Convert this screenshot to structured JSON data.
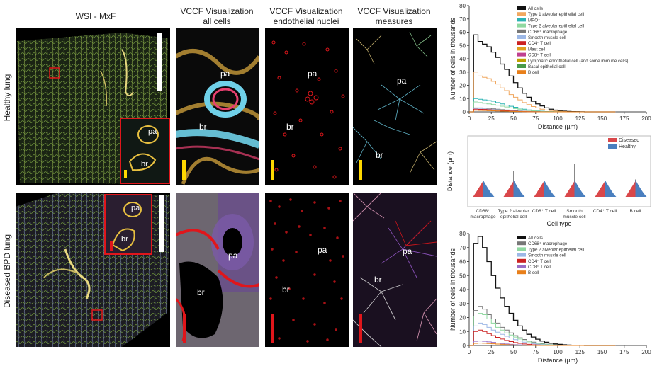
{
  "columns": {
    "c1": "WSI - MxF",
    "c2a": "VCCF Visualization",
    "c2b": "all cells",
    "c3a": "VCCF Visualization",
    "c3b": "endothelial nuclei",
    "c4a": "VCCF Visualization",
    "c4b": "measures"
  },
  "rows": {
    "healthy": "Healthy lung",
    "diseased": "Diseased BPD lung"
  },
  "annotations": {
    "pa": "pa",
    "br": "br"
  },
  "colors": {
    "healthy_scale": "#ffd800",
    "diseased_scale": "#e0161b",
    "scale_white": "#ffffff"
  },
  "chart_data": [
    {
      "type": "line",
      "ylabel": "Number of cells in thousands",
      "xlabel": "Distance (µm)",
      "xlim": [
        0,
        200
      ],
      "ylim": [
        0,
        80
      ],
      "xticks": [
        0,
        25,
        50,
        75,
        100,
        125,
        150,
        175,
        200
      ],
      "yticks": [
        0,
        10,
        20,
        30,
        40,
        50,
        60,
        70,
        80
      ],
      "bin": 5,
      "x": [
        0,
        5,
        10,
        15,
        20,
        25,
        30,
        35,
        40,
        45,
        50,
        55,
        60,
        65,
        70,
        75,
        80,
        85,
        90,
        95,
        100,
        105,
        110,
        115,
        120,
        125,
        130,
        135,
        140,
        145,
        150,
        155,
        160
      ],
      "legend": [
        "All cells",
        "Type 1 alveolar epithelial cell",
        "MPO⁺",
        "Type 2 alveolar epithelial cell",
        "CD68⁺ macrophage",
        "Smooth muscle cell",
        "CD4⁺ T cell",
        "Mast cell",
        "CD8⁺ T cell",
        "Lymphatic endothelial cell (and some immune cells)",
        "Basal epithelial cell",
        "B cell"
      ],
      "series": [
        {
          "name": "All cells",
          "color": "#111111",
          "values": [
            0,
            58,
            53,
            51,
            49,
            45,
            41,
            36,
            32,
            27,
            22,
            18,
            14,
            11,
            8,
            6,
            4.5,
            3,
            2,
            1.3,
            0.8,
            0.5,
            0.3,
            0.2,
            0.1,
            0.05,
            0,
            0,
            0,
            0,
            0,
            0,
            0
          ]
        },
        {
          "name": "Type 1 alveolar epithelial cell",
          "color": "#f0a860",
          "values": [
            0,
            30,
            27,
            26,
            25,
            23,
            21,
            18,
            16,
            13,
            11,
            9,
            7,
            5.5,
            4,
            3,
            2,
            1.4,
            1,
            0.6,
            0.4,
            0.2,
            0.1,
            0.05,
            0,
            0,
            0,
            0,
            0,
            0,
            0,
            0,
            0
          ]
        },
        {
          "name": "MPO⁺",
          "color": "#2ab3b3",
          "values": [
            0,
            10,
            9.5,
            9,
            8.5,
            8,
            7,
            6,
            5,
            4.2,
            3.5,
            2.8,
            2,
            1.5,
            1,
            0.7,
            0.5,
            0.3,
            0.2,
            0.1,
            0.05,
            0,
            0,
            0,
            0,
            0,
            0,
            0,
            0,
            0,
            0,
            0,
            0
          ]
        },
        {
          "name": "Type 2 alveolar epithelial cell",
          "color": "#8fd8a0",
          "values": [
            0,
            7.5,
            7,
            6.5,
            6,
            5.5,
            5,
            4.3,
            3.7,
            3,
            2.5,
            2,
            1.5,
            1.1,
            0.8,
            0.5,
            0.3,
            0.2,
            0.1,
            0.05,
            0,
            0,
            0,
            0,
            0,
            0,
            0,
            0,
            0,
            0,
            0,
            0,
            0
          ]
        },
        {
          "name": "CD68⁺ macrophage",
          "color": "#777777",
          "values": [
            0,
            3,
            3,
            2.8,
            2.6,
            2.3,
            2,
            1.7,
            1.4,
            1.1,
            0.9,
            0.7,
            0.5,
            0.35,
            0.25,
            0.15,
            0.1,
            0.05,
            0,
            0,
            0,
            0,
            0,
            0,
            0,
            0,
            0,
            0,
            0,
            0,
            0,
            0,
            0
          ]
        },
        {
          "name": "Smooth muscle cell",
          "color": "#9db8e6",
          "values": [
            0,
            2.5,
            2.3,
            2.1,
            1.9,
            1.7,
            1.5,
            1.2,
            1,
            0.8,
            0.6,
            0.45,
            0.3,
            0.2,
            0.12,
            0.08,
            0.05,
            0,
            0,
            0,
            0,
            0,
            0,
            0,
            0,
            0,
            0,
            0,
            0,
            0,
            0,
            0,
            0
          ]
        },
        {
          "name": "CD4⁺ T cell",
          "color": "#cc2222",
          "values": [
            0,
            2,
            1.9,
            1.8,
            1.6,
            1.4,
            1.2,
            1,
            0.8,
            0.6,
            0.45,
            0.3,
            0.2,
            0.15,
            0.1,
            0.05,
            0,
            0,
            0,
            0,
            0,
            0,
            0,
            0,
            0,
            0,
            0,
            0,
            0,
            0,
            0,
            0,
            0
          ]
        },
        {
          "name": "B cell",
          "color": "#e87f1a",
          "values": [
            0,
            1.2,
            1.1,
            1,
            0.9,
            0.8,
            0.7,
            0.55,
            0.45,
            0.35,
            0.25,
            0.18,
            0.12,
            0.08,
            0.05,
            0,
            0,
            0,
            0,
            0,
            0,
            0,
            0,
            0,
            0,
            0,
            0,
            0,
            0,
            0,
            0,
            0,
            0
          ]
        }
      ]
    },
    {
      "type": "violin",
      "ylabel": "Distance (µm)",
      "xlabel": "Cell type",
      "categories": [
        "CD68⁺ macrophage",
        "Type 2 alveolar epithelial cell",
        "CD8⁺ T cell",
        "Smooth muscle cell",
        "CD4⁺ T cell",
        "B cell"
      ],
      "tick_labels": [
        [
          "CD68⁺",
          "macrophage"
        ],
        [
          "Type 2 alveolar",
          "epithelial cell"
        ],
        [
          "CD8⁺ T cell"
        ],
        [
          "Smooth",
          "muscle cell"
        ],
        [
          "CD4⁺ T cell"
        ],
        [
          "B cell"
        ]
      ],
      "legend": [
        "Diseased",
        "Healthy"
      ],
      "max_healthy": [
        700,
        330,
        350,
        420,
        560,
        220
      ],
      "colors": {
        "Diseased": "#d9474a",
        "Healthy": "#4a7fbf"
      }
    },
    {
      "type": "line",
      "ylabel": "Number of cells in thousands",
      "xlabel": "Distance (µm)",
      "xlim": [
        0,
        200
      ],
      "ylim": [
        0,
        80
      ],
      "xticks": [
        0,
        25,
        50,
        75,
        100,
        125,
        150,
        175,
        200
      ],
      "yticks": [
        0,
        10,
        20,
        30,
        40,
        50,
        60,
        70,
        80
      ],
      "bin": 5,
      "x": [
        0,
        5,
        10,
        15,
        20,
        25,
        30,
        35,
        40,
        45,
        50,
        55,
        60,
        65,
        70,
        75,
        80,
        85,
        90,
        95,
        100,
        105,
        110,
        115,
        120,
        125,
        130,
        135,
        140,
        145,
        150,
        155,
        160
      ],
      "legend": [
        "All cells",
        "CD68⁺ macrophage",
        "Type 2 alveolar epithelial cell",
        "Smooth muscle cell",
        "CD4⁺ T cell",
        "CD8⁺ T cell",
        "B cell"
      ],
      "series": [
        {
          "name": "All cells",
          "color": "#111111",
          "values": [
            0,
            73,
            78,
            70,
            60,
            50,
            41,
            34,
            28,
            23,
            18,
            14,
            11,
            8,
            6,
            4.5,
            3.2,
            2.3,
            1.6,
            1.1,
            0.8,
            0.5,
            0.3,
            0.2,
            0.1,
            0.05,
            0,
            0,
            0,
            0,
            0,
            0,
            0
          ]
        },
        {
          "name": "CD68⁺ macrophage",
          "color": "#777777",
          "values": [
            0,
            25,
            28,
            26,
            22,
            19,
            16,
            13,
            11,
            9,
            7,
            5.5,
            4.3,
            3.2,
            2.4,
            1.8,
            1.3,
            0.9,
            0.6,
            0.4,
            0.25,
            0.15,
            0.1,
            0.05,
            0,
            0,
            0,
            0,
            0,
            0,
            0,
            0,
            0
          ]
        },
        {
          "name": "Type 2 alveolar epithelial cell",
          "color": "#8fd8a0",
          "values": [
            0,
            21,
            23,
            22,
            19,
            16,
            13,
            11,
            9,
            7.5,
            6,
            4.6,
            3.5,
            2.6,
            1.9,
            1.4,
            1,
            0.7,
            0.45,
            0.3,
            0.2,
            0.1,
            0.05,
            0,
            0,
            0,
            0,
            0,
            0,
            0,
            0,
            0,
            0
          ]
        },
        {
          "name": "Smooth muscle cell",
          "color": "#9db8e6",
          "values": [
            0,
            14,
            16,
            15,
            13,
            11,
            9.5,
            8,
            6.6,
            5.3,
            4.2,
            3.2,
            2.4,
            1.8,
            1.3,
            0.9,
            0.6,
            0.4,
            0.25,
            0.15,
            0.1,
            0.05,
            0,
            0,
            0,
            0,
            0,
            0,
            0,
            0,
            0,
            0,
            0
          ]
        },
        {
          "name": "CD4⁺ T cell",
          "color": "#cc2222",
          "values": [
            0,
            10,
            11,
            10,
            8.5,
            7,
            5.8,
            4.6,
            3.6,
            2.8,
            2.1,
            1.5,
            1.1,
            0.8,
            0.5,
            0.35,
            0.2,
            0.1,
            0.05,
            0,
            0,
            0,
            0,
            0,
            0,
            0,
            0,
            0,
            0,
            0,
            0,
            0,
            0
          ]
        },
        {
          "name": "CD8⁺ T cell",
          "color": "#9b6fc6",
          "values": [
            0,
            3,
            3.2,
            3,
            2.6,
            2.2,
            1.8,
            1.4,
            1.1,
            0.8,
            0.6,
            0.45,
            0.3,
            0.2,
            0.12,
            0.08,
            0.05,
            0,
            0,
            0,
            0,
            0,
            0,
            0,
            0,
            0,
            0,
            0,
            0,
            0,
            0,
            0,
            0
          ]
        },
        {
          "name": "B cell",
          "color": "#e87f1a",
          "values": [
            0,
            1.5,
            1.7,
            1.6,
            1.4,
            1.2,
            1,
            0.8,
            0.6,
            0.45,
            0.33,
            0.24,
            0.16,
            0.1,
            0.06,
            0.03,
            0,
            0,
            0,
            0,
            0,
            0,
            0,
            0,
            0,
            0,
            0,
            0,
            0,
            0,
            0,
            0,
            0
          ]
        }
      ]
    }
  ]
}
